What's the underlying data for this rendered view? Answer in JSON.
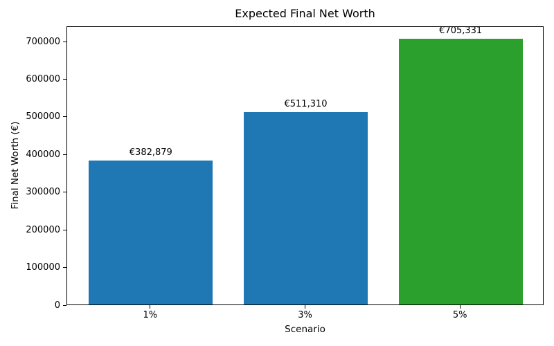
{
  "chart_data": {
    "type": "bar",
    "title": "Expected Final Net Worth",
    "xlabel": "Scenario",
    "ylabel": "Final Net Worth (€)",
    "categories": [
      "1%",
      "3%",
      "5%"
    ],
    "values": [
      382879,
      511310,
      705331
    ],
    "bar_labels": [
      "€382,879",
      "€511,310",
      "€705,331"
    ],
    "bar_colors": [
      "#1f77b4",
      "#1f77b4",
      "#2ca02c"
    ],
    "ylim": [
      0,
      740598
    ],
    "yticks": [
      0,
      100000,
      200000,
      300000,
      400000,
      500000,
      600000,
      700000
    ],
    "ytick_labels": [
      "0",
      "100000",
      "200000",
      "300000",
      "400000",
      "500000",
      "600000",
      "700000"
    ],
    "grid": false,
    "legend_position": "none",
    "background_color": "#ffffff",
    "spine_color": "#000000",
    "text_color": "#000000"
  }
}
